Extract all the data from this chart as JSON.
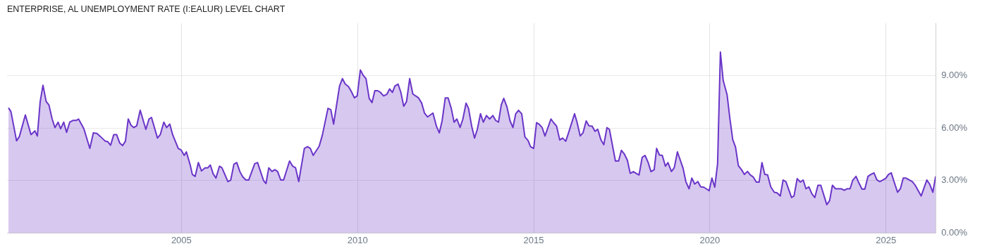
{
  "chart_data": {
    "type": "area",
    "title": "ENTERPRISE, AL UNEMPLOYMENT RATE (I:EALUR) LEVEL CHART",
    "xlim": [
      2000.05,
      2026.41
    ],
    "xticks": [
      2005,
      2010,
      2015,
      2020,
      2025
    ],
    "ylim": [
      0,
      12
    ],
    "yticks": [
      {
        "value": 0,
        "label": "0.00%"
      },
      {
        "value": 3,
        "label": "3.00%"
      },
      {
        "value": 6,
        "label": "6.00%"
      },
      {
        "value": 9,
        "label": "9.00%"
      }
    ],
    "grid": true,
    "legend": false,
    "series": [
      {
        "color": "#6a35c8",
        "x": [
          2000.09,
          2000.16,
          2000.32,
          2000.4,
          2000.57,
          2000.73,
          2000.84,
          2000.91,
          2000.99,
          2001.07,
          2001.16,
          2001.24,
          2001.33,
          2001.41,
          2001.5,
          2001.57,
          2001.66,
          2001.74,
          2001.83,
          2001.92,
          2002.01,
          2002.08,
          2002.23,
          2002.4,
          2002.5,
          2002.6,
          2002.7,
          2002.84,
          2002.91,
          2002.99,
          2003.08,
          2003.16,
          2003.25,
          2003.33,
          2003.41,
          2003.49,
          2003.57,
          2003.65,
          2003.73,
          2003.83,
          2003.99,
          2004.08,
          2004.15,
          2004.32,
          2004.4,
          2004.5,
          2004.58,
          2004.67,
          2004.75,
          2004.91,
          2004.99,
          2005.08,
          2005.14,
          2005.25,
          2005.31,
          2005.39,
          2005.48,
          2005.57,
          2005.67,
          2005.75,
          2005.82,
          2005.9,
          2005.98,
          2006.08,
          2006.15,
          2006.32,
          2006.4,
          2006.49,
          2006.57,
          2006.66,
          2006.74,
          2006.83,
          2006.91,
          2007.08,
          2007.16,
          2007.33,
          2007.4,
          2007.48,
          2007.57,
          2007.65,
          2007.73,
          2007.82,
          2007.9,
          2008.07,
          2008.16,
          2008.24,
          2008.33,
          2008.49,
          2008.58,
          2008.66,
          2008.74,
          2008.91,
          2009.0,
          2009.16,
          2009.24,
          2009.32,
          2009.49,
          2009.57,
          2009.65,
          2009.74,
          2009.82,
          2009.91,
          2009.99,
          2010.08,
          2010.16,
          2010.24,
          2010.33,
          2010.41,
          2010.49,
          2010.57,
          2010.65,
          2010.74,
          2010.83,
          2010.91,
          2010.99,
          2011.06,
          2011.15,
          2011.23,
          2011.31,
          2011.39,
          2011.48,
          2011.57,
          2011.73,
          2011.82,
          2011.9,
          2011.99,
          2012.14,
          2012.24,
          2012.32,
          2012.4,
          2012.49,
          2012.57,
          2012.66,
          2012.74,
          2012.82,
          2012.91,
          2012.99,
          2013.08,
          2013.15,
          2013.24,
          2013.32,
          2013.4,
          2013.49,
          2013.57,
          2013.66,
          2013.75,
          2013.84,
          2013.92,
          2014.0,
          2014.08,
          2014.15,
          2014.24,
          2014.33,
          2014.41,
          2014.49,
          2014.57,
          2014.66,
          2014.75,
          2014.84,
          2014.91,
          2015.0,
          2015.08,
          2015.15,
          2015.24,
          2015.32,
          2015.49,
          2015.57,
          2015.65,
          2015.74,
          2015.82,
          2015.91,
          2015.99,
          2016.16,
          2016.23,
          2016.32,
          2016.4,
          2016.49,
          2016.57,
          2016.66,
          2016.74,
          2016.82,
          2016.91,
          2016.99,
          2017.08,
          2017.15,
          2017.32,
          2017.41,
          2017.49,
          2017.57,
          2017.66,
          2017.74,
          2017.83,
          2017.91,
          2017.99,
          2018.08,
          2018.16,
          2018.25,
          2018.33,
          2018.42,
          2018.49,
          2018.57,
          2018.65,
          2018.74,
          2018.81,
          2018.91,
          2018.99,
          2019.08,
          2019.24,
          2019.32,
          2019.41,
          2019.49,
          2019.57,
          2019.66,
          2019.74,
          2019.83,
          2019.98,
          2020.06,
          2020.14,
          2020.22,
          2020.3,
          2020.38,
          2020.49,
          2020.57,
          2020.65,
          2020.73,
          2020.81,
          2020.9,
          2020.98,
          2021.07,
          2021.15,
          2021.23,
          2021.32,
          2021.4,
          2021.48,
          2021.56,
          2021.64,
          2021.73,
          2021.83,
          2021.91,
          2022.0,
          2022.08,
          2022.16,
          2022.32,
          2022.39,
          2022.48,
          2022.57,
          2022.65,
          2022.73,
          2022.81,
          2022.9,
          2022.98,
          2023.07,
          2023.15,
          2023.32,
          2023.4,
          2023.48,
          2023.57,
          2023.73,
          2023.82,
          2023.9,
          2023.98,
          2024.06,
          2024.15,
          2024.23,
          2024.32,
          2024.4,
          2024.49,
          2024.57,
          2024.66,
          2024.74,
          2024.82,
          2024.91,
          2025.0,
          2025.07,
          2025.15,
          2025.24,
          2025.33,
          2025.41,
          2025.49,
          2025.57,
          2025.75,
          2025.83,
          2026.0,
          2026.16,
          2026.24,
          2026.33,
          2026.41
        ],
        "values": [
          7.16,
          6.95,
          5.27,
          5.52,
          6.75,
          5.63,
          5.84,
          5.55,
          7.51,
          8.45,
          7.52,
          7.32,
          6.52,
          6.03,
          6.34,
          5.96,
          6.34,
          5.76,
          6.34,
          6.44,
          6.44,
          6.52,
          5.97,
          4.84,
          5.73,
          5.7,
          5.52,
          5.25,
          5.22,
          5.02,
          5.63,
          5.63,
          5.14,
          5.0,
          5.25,
          6.52,
          6.16,
          6.03,
          6.13,
          7.02,
          5.93,
          6.52,
          6.61,
          5.43,
          5.63,
          6.34,
          6.03,
          6.23,
          5.63,
          4.84,
          4.75,
          4.44,
          4.64,
          3.89,
          3.35,
          3.24,
          4.03,
          3.55,
          3.73,
          3.73,
          3.89,
          3.39,
          3.14,
          3.82,
          3.73,
          2.94,
          3.03,
          3.93,
          4.03,
          3.51,
          3.21,
          3.03,
          3.03,
          3.96,
          4.03,
          3.01,
          2.83,
          3.73,
          3.52,
          3.62,
          3.52,
          3.03,
          3.03,
          4.12,
          3.82,
          3.73,
          2.94,
          4.84,
          4.94,
          4.84,
          4.44,
          4.96,
          5.59,
          7.13,
          7.06,
          6.23,
          8.42,
          8.83,
          8.52,
          8.38,
          8.11,
          7.73,
          7.84,
          9.33,
          9.02,
          8.83,
          7.7,
          7.46,
          8.14,
          8.14,
          8.04,
          7.84,
          7.93,
          8.24,
          8.04,
          8.41,
          8.52,
          8.04,
          7.25,
          7.52,
          8.83,
          7.95,
          7.73,
          7.43,
          6.86,
          6.64,
          6.86,
          6.1,
          5.73,
          6.41,
          7.73,
          7.73,
          7.13,
          6.34,
          6.52,
          6.04,
          6.52,
          7.43,
          7.13,
          6.11,
          5.43,
          5.93,
          6.82,
          6.34,
          6.72,
          6.52,
          6.72,
          6.44,
          6.34,
          7.33,
          7.7,
          7.22,
          6.41,
          6.03,
          6.82,
          7.02,
          6.82,
          5.5,
          5.29,
          4.94,
          4.84,
          6.31,
          6.23,
          6.03,
          5.55,
          6.52,
          6.3,
          6.11,
          5.32,
          5.43,
          5.25,
          5.73,
          6.82,
          6.34,
          5.55,
          5.73,
          6.41,
          6.13,
          6.11,
          5.82,
          5.93,
          5.32,
          5.05,
          6.03,
          5.93,
          4.12,
          4.12,
          4.73,
          4.53,
          4.16,
          3.41,
          3.51,
          3.41,
          3.32,
          4.33,
          4.44,
          4.03,
          3.51,
          3.62,
          4.84,
          4.46,
          4.44,
          3.82,
          4.03,
          3.52,
          3.73,
          4.64,
          3.71,
          2.94,
          2.53,
          3.14,
          2.8,
          2.94,
          2.64,
          2.62,
          2.42,
          3.14,
          2.62,
          3.96,
          10.35,
          8.72,
          7.91,
          6.54,
          5.35,
          4.91,
          3.85,
          3.62,
          3.35,
          3.52,
          3.32,
          3.21,
          2.91,
          2.91,
          4.03,
          3.35,
          3.32,
          2.64,
          2.33,
          2.3,
          2.12,
          3.03,
          2.94,
          2.03,
          2.12,
          3.11,
          2.91,
          3.03,
          2.53,
          2.64,
          2.23,
          2.03,
          2.73,
          2.73,
          1.62,
          1.85,
          2.73,
          2.53,
          2.53,
          2.44,
          2.53,
          2.53,
          3.03,
          3.24,
          2.87,
          2.51,
          2.51,
          3.24,
          3.35,
          3.44,
          3.05,
          2.94,
          3.03,
          3.14,
          3.35,
          3.44,
          2.87,
          2.33,
          2.53,
          3.14,
          3.14,
          2.94,
          2.73,
          2.12,
          3.03,
          2.8,
          2.33,
          3.24
        ]
      }
    ]
  }
}
